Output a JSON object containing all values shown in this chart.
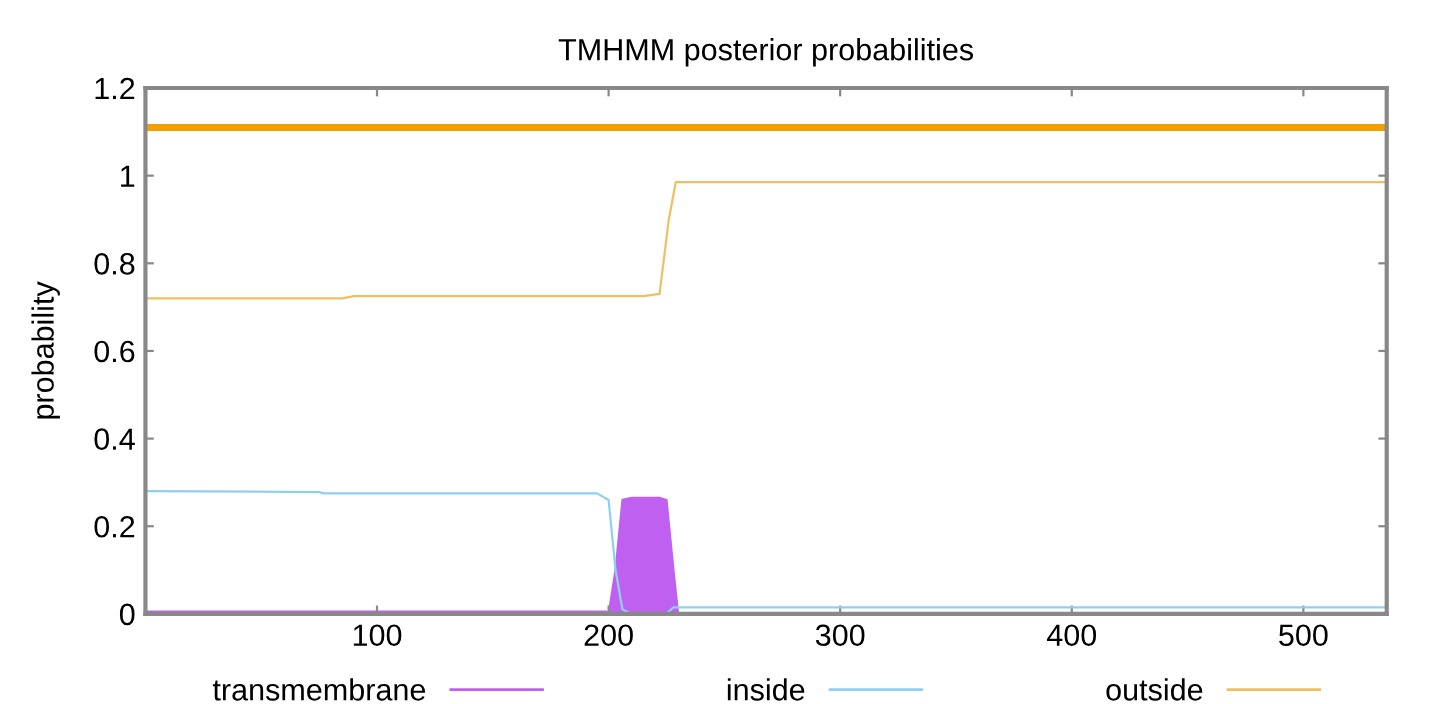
{
  "chart_data": {
    "type": "line",
    "title": "TMHMM posterior probabilities",
    "ylabel": "probability",
    "xlim": [
      0,
      536
    ],
    "xticks": [
      100,
      200,
      300,
      400,
      500
    ],
    "ylim": [
      0,
      1.2
    ],
    "yticks": [
      0,
      0.2,
      0.4,
      0.6,
      0.8,
      1,
      1.2
    ],
    "grid": false,
    "legend": "bottom",
    "line_style": "solid",
    "marker": "none",
    "ref_lines": [
      {
        "axis": "y",
        "value": 1.11,
        "color": "#f0a000"
      }
    ],
    "series": [
      {
        "name": "transmembrane",
        "type": "area",
        "color": "#c060f0",
        "x": [
          1,
          199,
          200,
          203,
          206,
          210,
          222,
          225,
          228,
          230,
          536
        ],
        "values": [
          0.005,
          0.005,
          0,
          0.1,
          0.26,
          0.265,
          0.265,
          0.26,
          0.1,
          0,
          0
        ]
      },
      {
        "name": "inside",
        "color": "#8fd0f0",
        "x": [
          1,
          75,
          77,
          195,
          200,
          203,
          206,
          210,
          225,
          228,
          536
        ],
        "values": [
          0.28,
          0.278,
          0.275,
          0.275,
          0.26,
          0.1,
          0.01,
          0,
          0,
          0.015,
          0.015
        ]
      },
      {
        "name": "outside",
        "color": "#f0c060",
        "x": [
          1,
          85,
          90,
          215,
          222,
          226,
          229,
          536
        ],
        "values": [
          0.72,
          0.72,
          0.725,
          0.725,
          0.73,
          0.9,
          0.985,
          0.985
        ]
      }
    ]
  }
}
